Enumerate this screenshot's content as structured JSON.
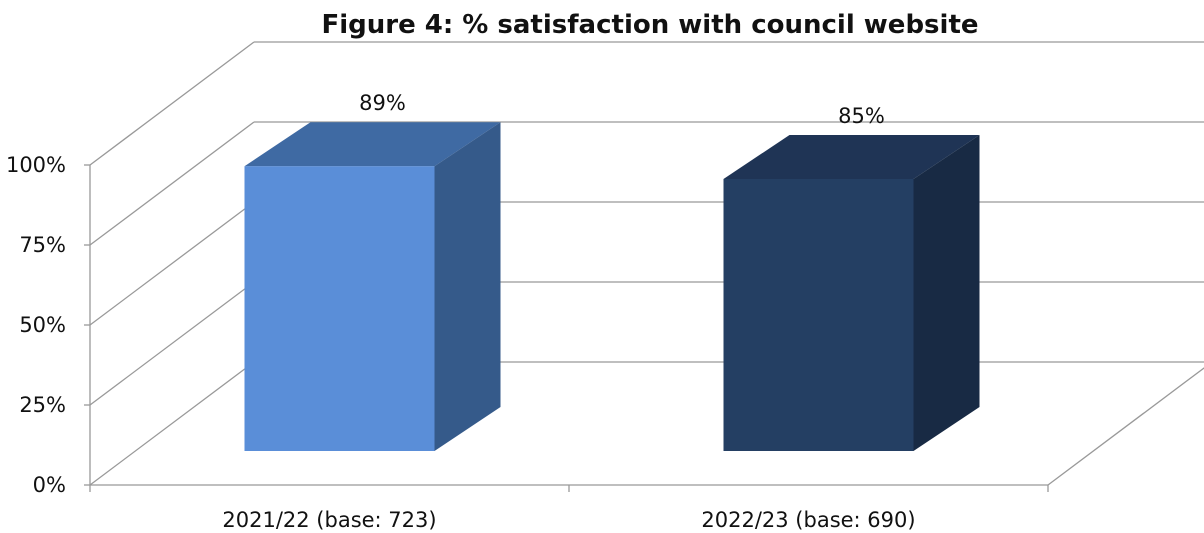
{
  "chart_data": {
    "type": "bar",
    "title": "Figure 4: % satisfaction with council website",
    "categories": [
      "2021/22 (base: 723)",
      "2022/23 (base: 690)"
    ],
    "values": [
      89,
      85
    ],
    "data_labels": [
      "89%",
      "85%"
    ],
    "ylim": [
      0,
      100
    ],
    "yticks": [
      0,
      25,
      50,
      75,
      100
    ],
    "ytick_labels": [
      "0%",
      "25%",
      "50%",
      "75%",
      "100%"
    ],
    "xlabel": "",
    "ylabel": "",
    "grid": true,
    "legend": "none",
    "style": "3d-column",
    "colors": {
      "bars": [
        {
          "front": "#5A8ED8",
          "top": "#3F6AA3",
          "side": "#355A8A"
        },
        {
          "front": "#243F63",
          "top": "#1F3455",
          "side": "#182A44"
        }
      ],
      "grid": "#999999"
    }
  }
}
